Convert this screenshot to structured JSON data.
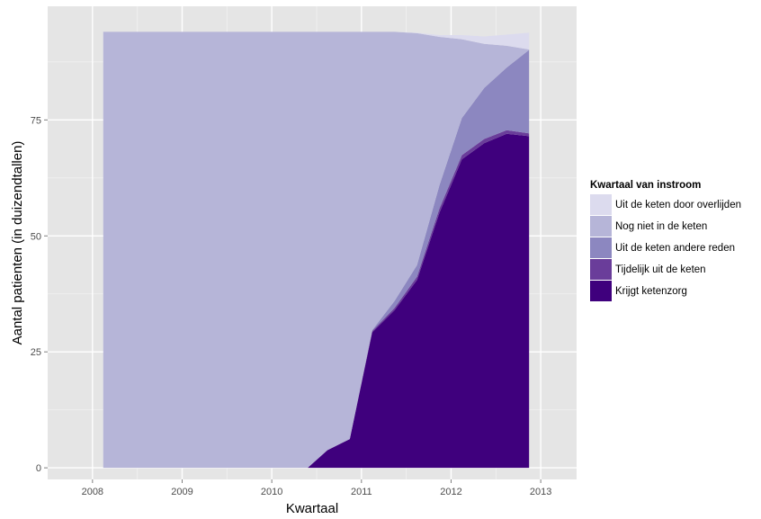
{
  "chart_data": {
    "type": "area",
    "stacked": true,
    "title": "",
    "xlabel": "Kwartaal",
    "ylabel": "Aantal patienten (in duizendtallen)",
    "xlim": [
      2007.5,
      2013.4
    ],
    "ylim": [
      -2.5,
      99.5
    ],
    "x_ticks": [
      2008,
      2009,
      2010,
      2011,
      2012,
      2013
    ],
    "y_ticks": [
      0,
      25,
      50,
      75
    ],
    "grid": true,
    "background": "#e5e5e5",
    "x": [
      2008.12,
      2010.39,
      2010.4,
      2010.62,
      2010.87,
      2011.12,
      2011.37,
      2011.62,
      2011.87,
      2012.12,
      2012.37,
      2012.62,
      2012.87
    ],
    "series": [
      {
        "name": "Krijgt ketenzorg",
        "color": "#3f007d",
        "values": [
          0,
          0,
          0,
          3.8,
          6.2,
          29.2,
          34.0,
          40.5,
          55.0,
          66.5,
          70.0,
          72.0,
          71.5
        ]
      },
      {
        "name": "Tijdelijk uit de keten",
        "color": "#6a3d9a",
        "values": [
          0,
          0,
          0,
          0,
          0,
          0.3,
          0.5,
          0.7,
          0.9,
          0.9,
          0.9,
          0.8,
          0.6
        ]
      },
      {
        "name": "Uit de keten andere reden",
        "color": "#8c87c0",
        "values": [
          0,
          0,
          0,
          0,
          0,
          0.2,
          1.5,
          2.5,
          5.0,
          8.0,
          11.0,
          13.5,
          18.0
        ]
      },
      {
        "name": "Nog niet in de keten",
        "color": "#b6b5d8",
        "values": [
          94,
          94,
          94,
          90.2,
          87.8,
          64.3,
          58.0,
          50.0,
          32.0,
          17.0,
          9.5,
          4.7,
          0.1
        ]
      },
      {
        "name": "Uit de keten door overlijden",
        "color": "#dcdbee",
        "values": [
          0,
          0,
          0,
          0,
          0,
          0,
          0,
          0.1,
          0.4,
          0.9,
          1.6,
          2.4,
          3.6
        ]
      }
    ]
  },
  "legend": {
    "title": "Kwartaal van instroom",
    "items": [
      {
        "label": "Uit de keten door overlijden",
        "color": "#dcdbee"
      },
      {
        "label": "Nog niet in de keten",
        "color": "#b6b5d8"
      },
      {
        "label": "Uit de keten andere reden",
        "color": "#8c87c0"
      },
      {
        "label": "Tijdelijk uit de keten",
        "color": "#6a3d9a"
      },
      {
        "label": "Krijgt ketenzorg",
        "color": "#3f007d"
      }
    ]
  }
}
